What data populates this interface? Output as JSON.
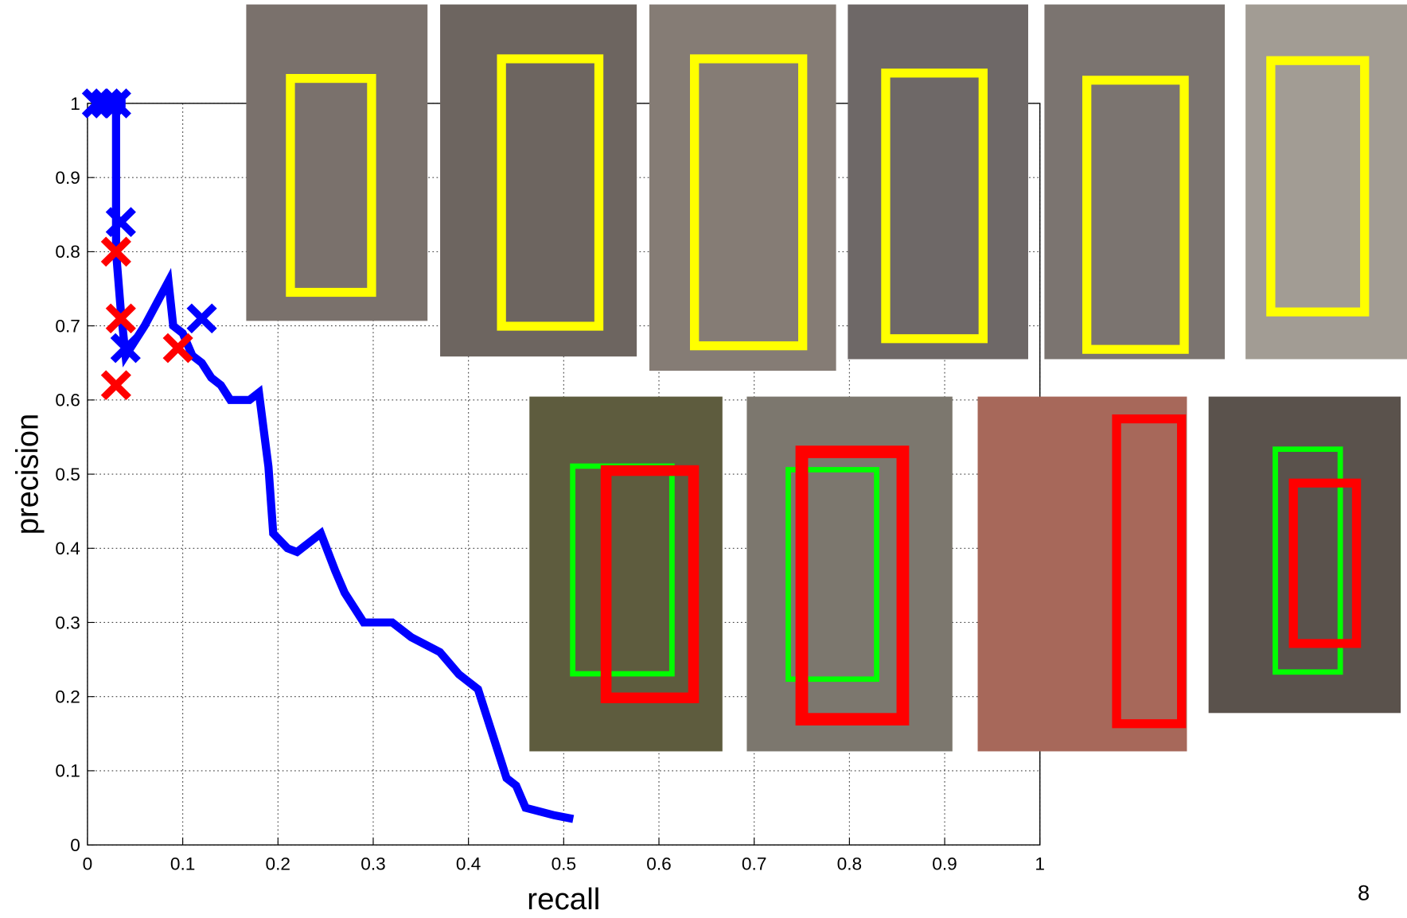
{
  "chart_data": {
    "type": "line",
    "xlabel": "recall",
    "ylabel": "precision",
    "xlim": [
      0,
      1
    ],
    "ylim": [
      0,
      1
    ],
    "xticks": [
      0,
      0.1,
      0.2,
      0.3,
      0.4,
      0.5,
      0.6,
      0.7,
      0.8,
      0.9,
      1
    ],
    "yticks": [
      0,
      0.1,
      0.2,
      0.3,
      0.4,
      0.5,
      0.6,
      0.7,
      0.8,
      0.9,
      1
    ],
    "grid": true,
    "series": [
      {
        "style": "line",
        "color": "#0000ff",
        "x": [
          0.02,
          0.03,
          0.04,
          0.03,
          0.03,
          0.03,
          0.035,
          0.04,
          0.05,
          0.06,
          0.085,
          0.09,
          0.1,
          0.11,
          0.12,
          0.13,
          0.14,
          0.15,
          0.17,
          0.18,
          0.185,
          0.19,
          0.195,
          0.21,
          0.22,
          0.245,
          0.26,
          0.27,
          0.28,
          0.29,
          0.32,
          0.34,
          0.37,
          0.39,
          0.41,
          0.42,
          0.43,
          0.44,
          0.45,
          0.46,
          0.49,
          0.51
        ],
        "values": [
          1,
          1,
          1,
          1,
          0.83,
          0.8,
          0.72,
          0.66,
          0.68,
          0.7,
          0.76,
          0.7,
          0.69,
          0.66,
          0.65,
          0.63,
          0.62,
          0.6,
          0.6,
          0.61,
          0.56,
          0.51,
          0.42,
          0.4,
          0.395,
          0.42,
          0.37,
          0.34,
          0.32,
          0.3,
          0.3,
          0.28,
          0.26,
          0.23,
          0.21,
          0.17,
          0.13,
          0.09,
          0.08,
          0.05,
          0.04,
          0.035
        ]
      },
      {
        "style": "markers",
        "color": "#0000ff",
        "x": [
          0.01,
          0.02,
          0.03,
          0.035,
          0.04,
          0.12
        ],
        "values": [
          1,
          1,
          1,
          0.84,
          0.67,
          0.71
        ]
      },
      {
        "style": "markers",
        "color": "#ff0000",
        "x": [
          0.03,
          0.035,
          0.03,
          0.095
        ],
        "values": [
          0.8,
          0.71,
          0.62,
          0.67
        ]
      }
    ]
  },
  "page_number": "8"
}
